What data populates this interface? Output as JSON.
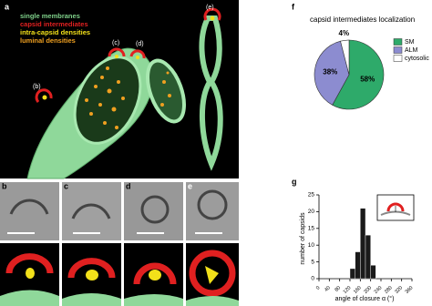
{
  "panels": {
    "a": {
      "label": "a",
      "legend": [
        "single membranes",
        "capsid intermediates",
        "intra-capsid densities",
        "luminal densities"
      ],
      "legend_colors": [
        "#7fd08a",
        "#e02020",
        "#f2e01a",
        "#f0a020"
      ],
      "callouts": [
        "(b)",
        "(c)",
        "(d)",
        "(e)"
      ]
    },
    "b": {
      "label": "b"
    },
    "c": {
      "label": "c"
    },
    "d": {
      "label": "d"
    },
    "e": {
      "label": "e"
    }
  },
  "chart_data": [
    {
      "type": "pie",
      "label": "f",
      "title": "capsid intermediates localization",
      "categories": [
        "SM",
        "ALM",
        "cytosolic"
      ],
      "values": [
        58,
        38,
        4
      ],
      "value_labels": [
        "58%",
        "38%",
        "4%"
      ],
      "colors": [
        "#2eaa6a",
        "#8c8cd0",
        "#ffffff"
      ],
      "legend": "right"
    },
    {
      "type": "histogram",
      "label": "g",
      "x_label": "angle of closure α (°)",
      "y_label": "number of capsids",
      "bins": [
        120,
        140,
        160,
        180,
        200,
        220
      ],
      "values": [
        3,
        8,
        21,
        13,
        4
      ],
      "color": "#1a1a1a",
      "xlim": [
        0,
        360
      ],
      "ylim": [
        0,
        25
      ],
      "xticks": [
        0,
        40,
        80,
        120,
        160,
        200,
        240,
        280,
        320,
        360
      ],
      "yticks": [
        0,
        5,
        10,
        15,
        20,
        25
      ]
    }
  ]
}
